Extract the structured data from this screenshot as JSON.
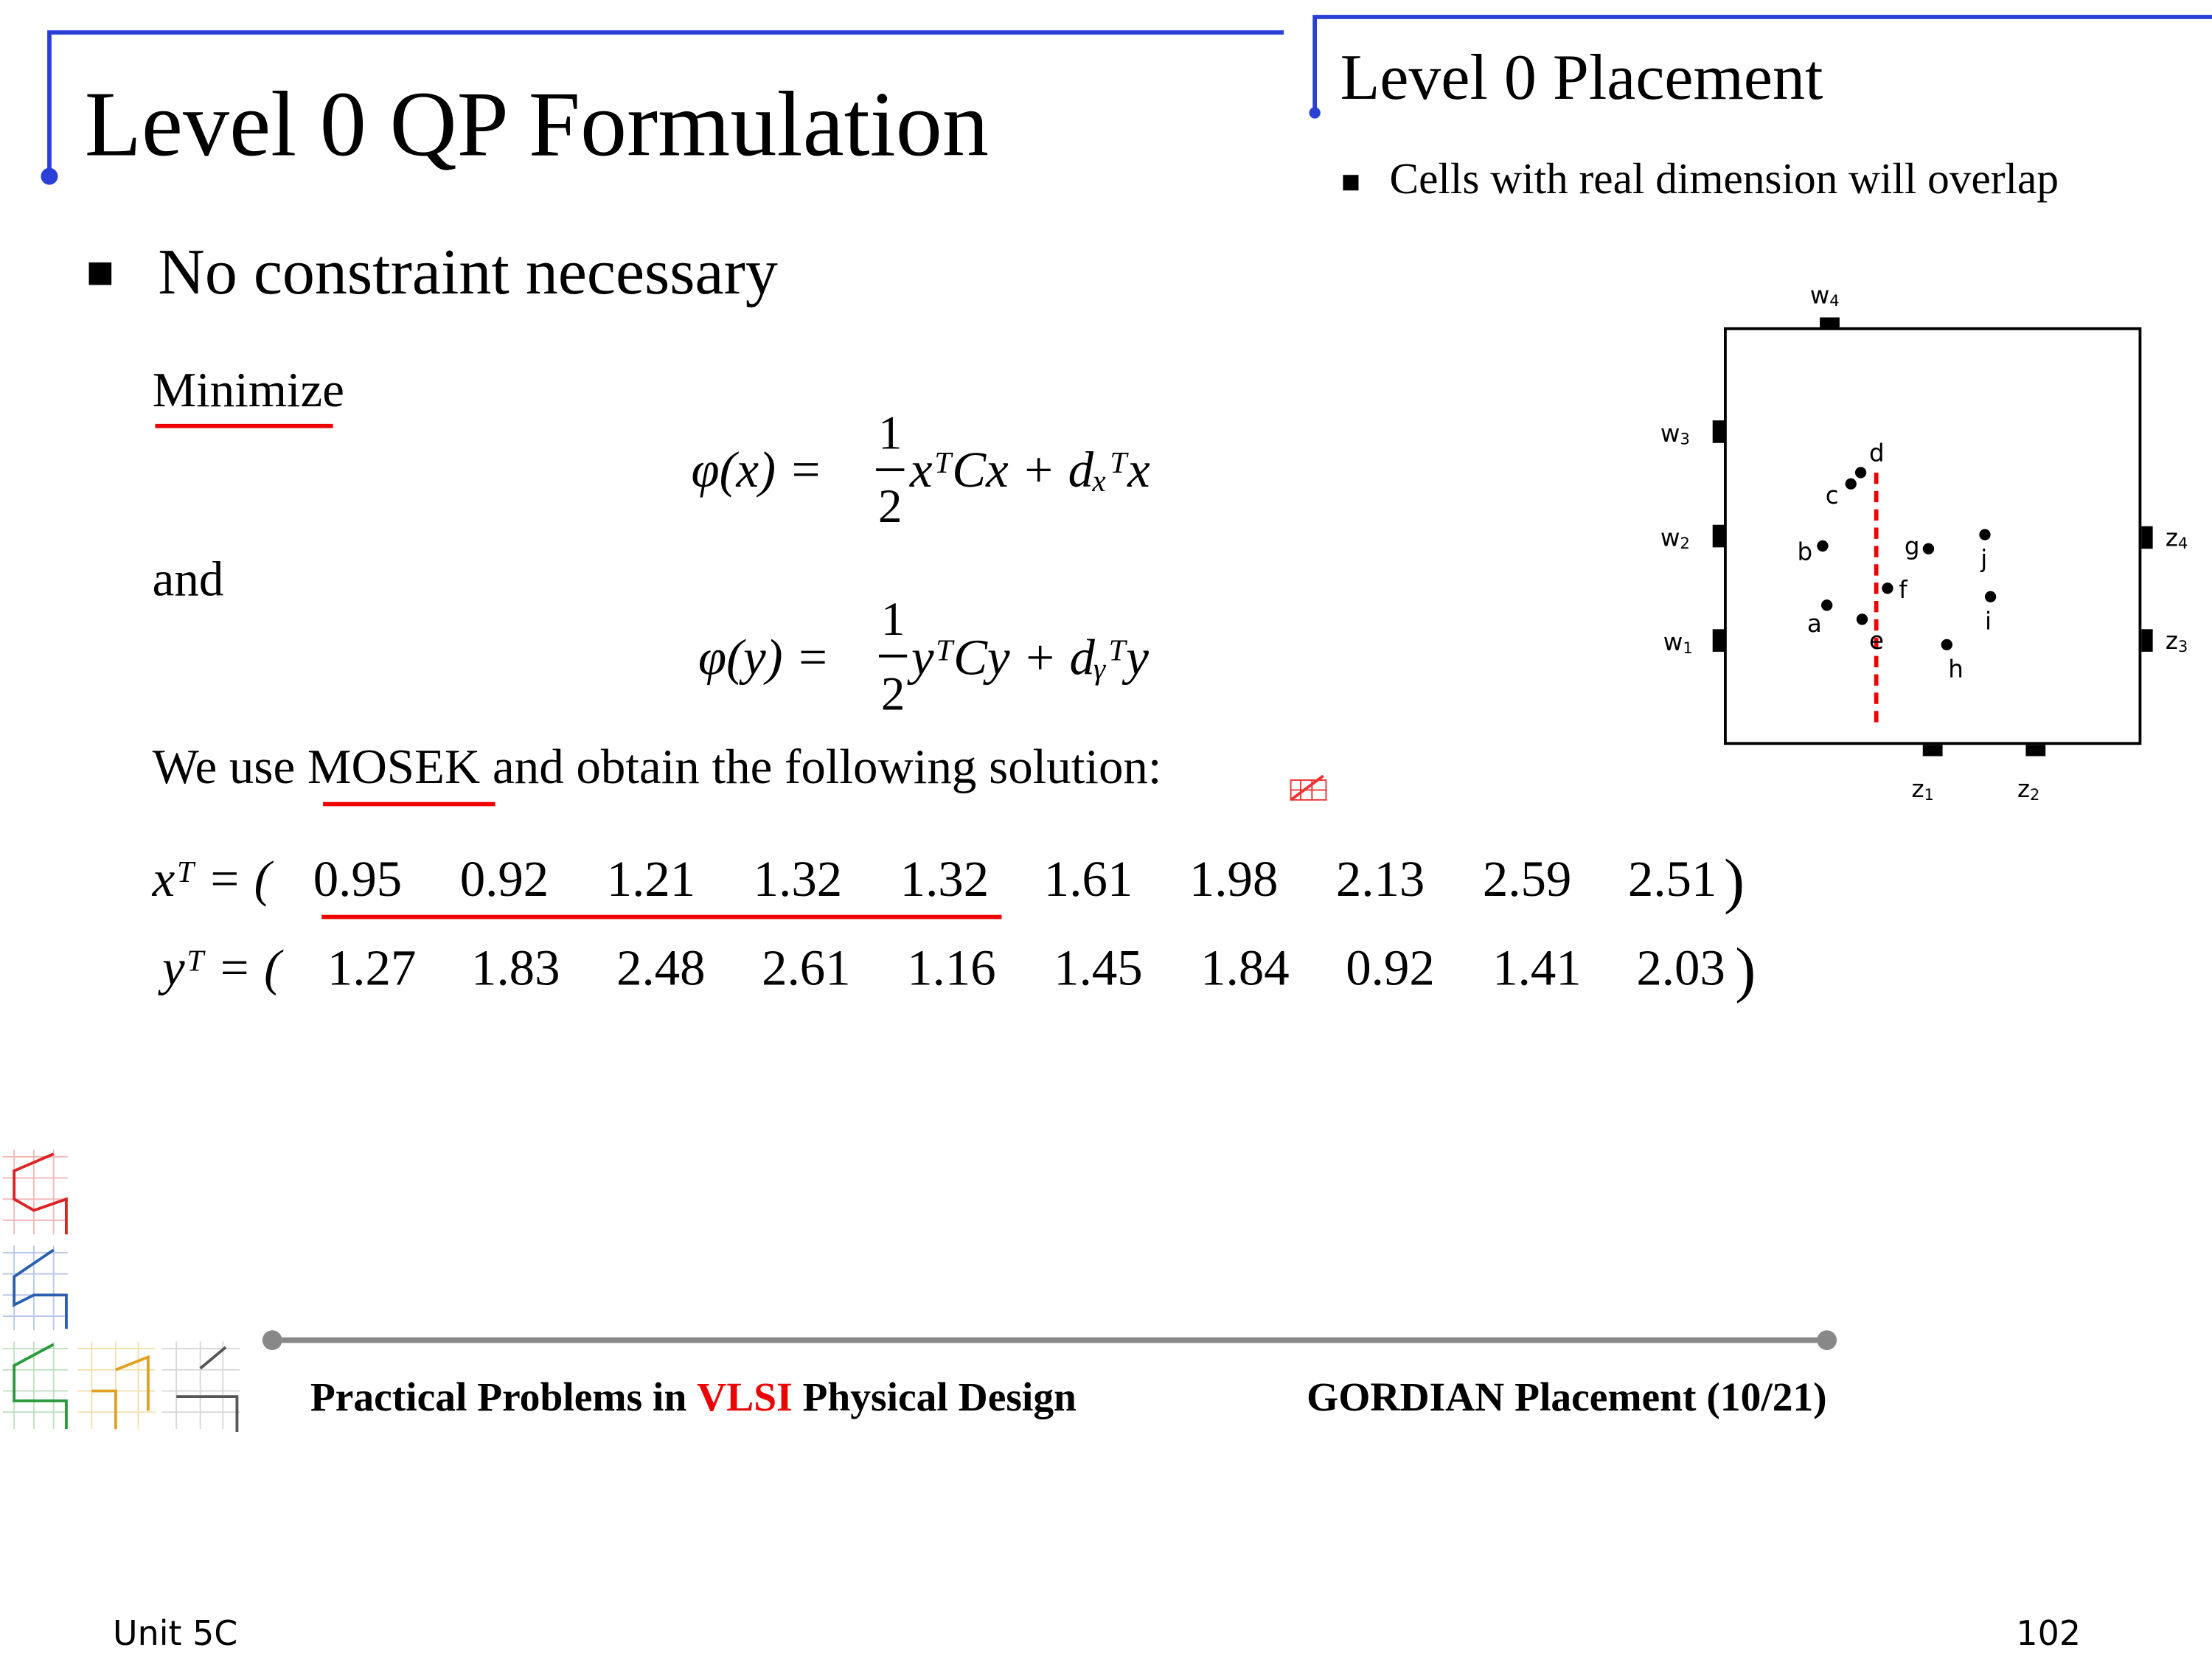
{
  "left": {
    "title": "Level 0 QP Formulation",
    "bullet": "No constraint necessary",
    "minimize": "Minimize",
    "eq1": {
      "lhs": "φ(x) =",
      "num": "1",
      "den": "2",
      "rhs": "xᵀCx + dₓᵀx"
    },
    "and": "and",
    "eq2": {
      "lhs": "φ(y) =",
      "num": "1",
      "den": "2",
      "rhs": "yᵀCy + dᵧᵀy"
    },
    "solution": {
      "pre": "We use ",
      "tool": "MOSEK",
      "post": " and obtain the following solution:"
    },
    "x_row": {
      "label": "xᵀ = (",
      "values": [
        "0.95",
        "0.92",
        "1.21",
        "1.32",
        "1.32",
        "1.61",
        "1.98",
        "2.13",
        "2.59",
        "2.51"
      ],
      "close": ")"
    },
    "y_row": {
      "label": "yᵀ = (",
      "values": [
        "1.27",
        "1.83",
        "2.48",
        "2.61",
        "1.16",
        "1.45",
        "1.84",
        "0.92",
        "1.41",
        "2.03"
      ],
      "close": ")"
    }
  },
  "right": {
    "title": "Level 0 Placement",
    "bullet": "Cells with real dimension will overlap",
    "pins": [
      {
        "name": "w",
        "index": "4"
      },
      {
        "name": "w",
        "index": "3"
      },
      {
        "name": "w",
        "index": "2"
      },
      {
        "name": "w",
        "index": "1"
      },
      {
        "name": "z",
        "index": "4"
      },
      {
        "name": "z",
        "index": "3"
      },
      {
        "name": "z",
        "index": "1"
      },
      {
        "name": "z",
        "index": "2"
      }
    ],
    "cells": [
      "a",
      "b",
      "c",
      "d",
      "e",
      "f",
      "g",
      "h",
      "i",
      "j"
    ]
  },
  "footer": {
    "left_pre": "Practical Problems in ",
    "left_red": "VLSI",
    "left_post": " Physical Design",
    "right": "GORDIAN Placement (10/21)"
  },
  "page": {
    "unit": "Unit 5C",
    "number": "102"
  }
}
